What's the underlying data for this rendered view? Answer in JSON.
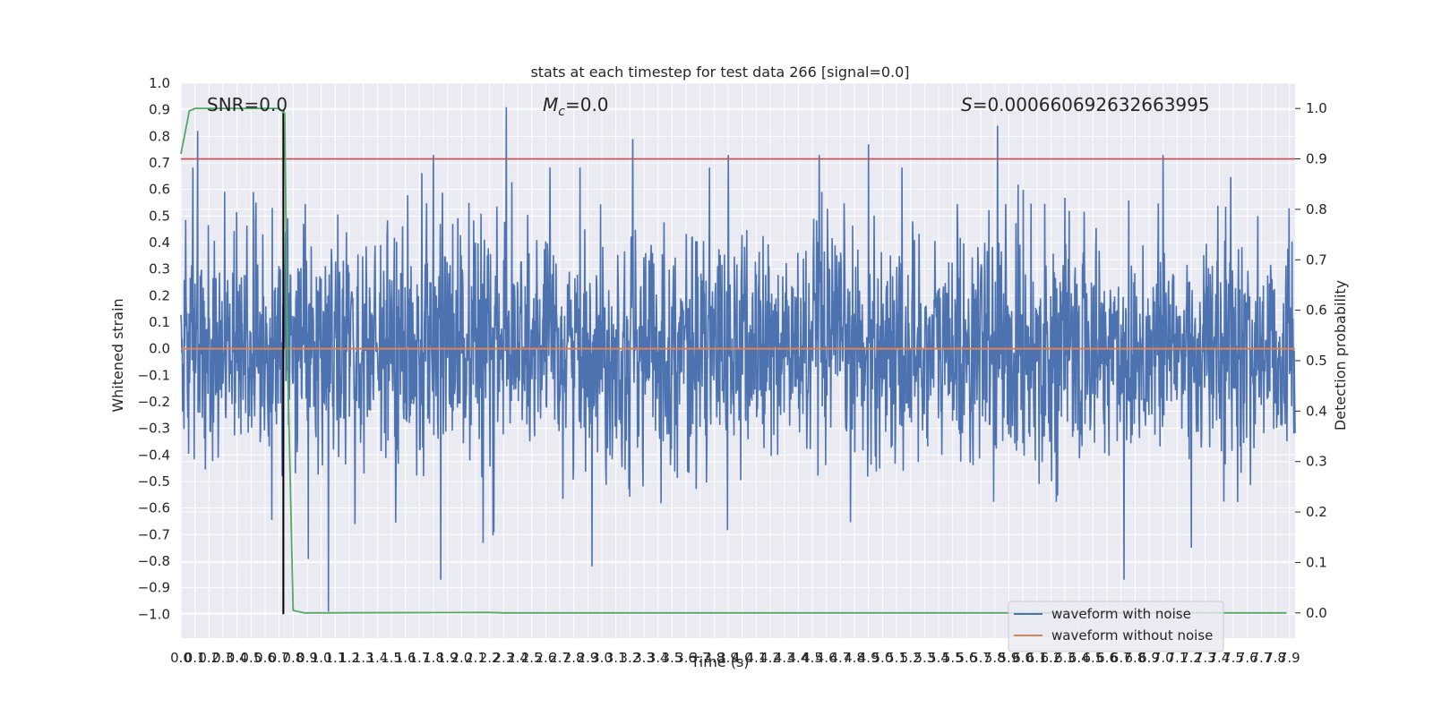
{
  "chart_data": {
    "type": "line",
    "title": "stats at each timestep for test data 266 [signal=0.0]",
    "xlabel": "Time (s)",
    "ylabel": "Whitened strain",
    "ylabel_right": "Detection probability",
    "xlim": [
      0.0,
      7.94
    ],
    "ylim": [
      -1.09,
      1.0
    ],
    "ylim_right": [
      -0.05,
      1.05
    ],
    "grid": true,
    "legend_position": "lower-right",
    "annotations": {
      "snr": "SNR=0.0",
      "mc_symbol": "M",
      "mc_sub": "c",
      "mc_value": "=0.0",
      "s_symbol": "S",
      "s_value": "=0.000660692632663995"
    },
    "x_ticks": [
      "0.0",
      "0.1",
      "0.2",
      "0.3",
      "0.4",
      "0.5",
      "0.6",
      "0.7",
      "0.8",
      "0.9",
      "1.0",
      "1.1",
      "1.2",
      "1.3",
      "1.4",
      "1.5",
      "1.6",
      "1.7",
      "1.8",
      "1.9",
      "2.0",
      "2.1",
      "2.2",
      "2.3",
      "2.4",
      "2.5",
      "2.6",
      "2.7",
      "2.8",
      "2.9",
      "3.0",
      "3.1",
      "3.2",
      "3.3",
      "3.4",
      "3.5",
      "3.6",
      "3.7",
      "3.8",
      "3.9",
      "4.0",
      "4.1",
      "4.2",
      "4.3",
      "4.4",
      "4.5",
      "4.6",
      "4.7",
      "4.8",
      "4.9",
      "5.0",
      "5.1",
      "5.2",
      "5.3",
      "5.4",
      "5.5",
      "5.6",
      "5.7",
      "5.8",
      "5.9",
      "6.0",
      "6.1",
      "6.2",
      "6.3",
      "6.4",
      "6.5",
      "6.6",
      "6.7",
      "6.8",
      "6.9",
      "7.0",
      "7.1",
      "7.2",
      "7.3",
      "7.4",
      "7.5",
      "7.6",
      "7.7",
      "7.8",
      "7.9"
    ],
    "y_ticks": [
      "1.0",
      "0.9",
      "0.8",
      "0.7",
      "0.6",
      "0.5",
      "0.4",
      "0.3",
      "0.2",
      "0.1",
      "0.0",
      "−0.1",
      "−0.2",
      "−0.3",
      "−0.4",
      "−0.5",
      "−0.6",
      "−0.7",
      "−0.8",
      "−0.9",
      "−1.0"
    ],
    "y_tick_values": [
      1.0,
      0.9,
      0.8,
      0.7,
      0.6,
      0.5,
      0.4,
      0.3,
      0.2,
      0.1,
      0.0,
      -0.1,
      -0.2,
      -0.3,
      -0.4,
      -0.5,
      -0.6,
      -0.7,
      -0.8,
      -0.9,
      -1.0
    ],
    "y_ticks_right": [
      "1.0",
      "0.9",
      "0.8",
      "0.7",
      "0.6",
      "0.5",
      "0.4",
      "0.3",
      "0.2",
      "0.1",
      "0.0"
    ],
    "y_tick_values_right": [
      1.0,
      0.9,
      0.8,
      0.7,
      0.6,
      0.5,
      0.4,
      0.3,
      0.2,
      0.1,
      0.0
    ],
    "noise_series": {
      "name": "waveform with noise",
      "color": "#4c72b0",
      "approx_std": 0.15,
      "approx_range": [
        -0.99,
        0.91
      ],
      "peaks": [
        [
          0.12,
          0.82
        ],
        [
          0.65,
          0.53
        ],
        [
          1.05,
          -0.99
        ],
        [
          1.8,
          0.73
        ],
        [
          1.85,
          -0.87
        ],
        [
          2.32,
          0.91
        ],
        [
          2.93,
          -0.82
        ],
        [
          3.22,
          0.79
        ],
        [
          3.9,
          0.73
        ],
        [
          4.55,
          0.73
        ],
        [
          4.9,
          0.77
        ],
        [
          5.82,
          0.84
        ],
        [
          6.72,
          -0.87
        ],
        [
          7.0,
          0.73
        ],
        [
          7.2,
          -0.75
        ]
      ]
    },
    "clean_series": {
      "name": "waveform without noise",
      "color": "#dd8452",
      "values": [
        [
          0.0,
          0.0
        ],
        [
          7.94,
          0.0
        ]
      ]
    },
    "probability_series": {
      "color": "#55a868",
      "axis": "right",
      "values": [
        [
          0.0,
          0.91
        ],
        [
          0.06,
          0.995
        ],
        [
          0.1,
          1.0
        ],
        [
          0.7,
          1.0
        ],
        [
          0.74,
          0.99
        ],
        [
          0.76,
          0.5
        ],
        [
          0.8,
          0.005
        ],
        [
          0.88,
          0.0
        ],
        [
          2.2,
          0.001
        ],
        [
          2.3,
          0.0
        ],
        [
          7.88,
          0.0
        ]
      ]
    },
    "threshold_line": {
      "color": "#c44e52",
      "axis": "right",
      "value": 0.9
    },
    "marker_line": {
      "color": "#000000",
      "x": 0.73,
      "range": [
        -1.0,
        0.9
      ]
    }
  }
}
